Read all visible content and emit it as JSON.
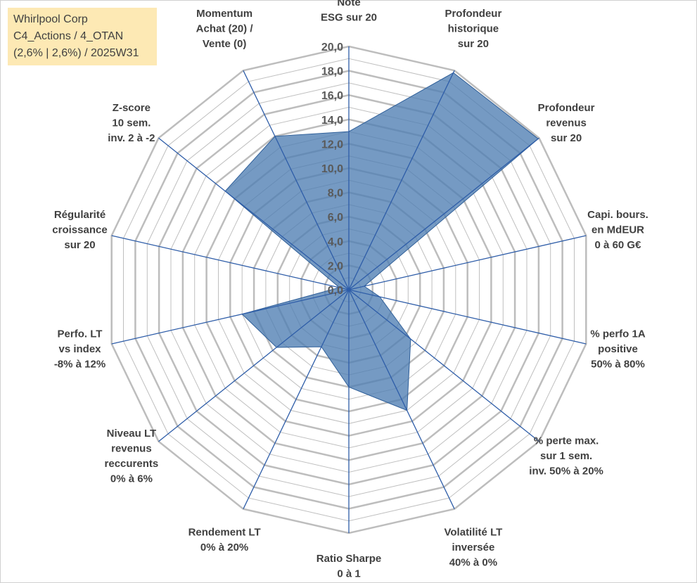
{
  "info": {
    "line1": "Whirlpool Corp",
    "line2": "C4_Actions / 4_OTAN",
    "line3": "(2,6% | 2,6%) / 2025W31"
  },
  "chart_data": {
    "type": "radar",
    "categories": [
      [
        "Note",
        "ESG sur 20"
      ],
      [
        "Profondeur",
        "historique",
        "sur 20"
      ],
      [
        "Profondeur",
        "revenus",
        "sur 20"
      ],
      [
        "Capi. bours.",
        "en MdEUR",
        "0 à 60 G€"
      ],
      [
        "% perfo 1A",
        "positive",
        "50% à 80%"
      ],
      [
        "% perte max.",
        "sur 1 sem.",
        "inv. 50% à 20%"
      ],
      [
        "Volatilité LT",
        "inversée",
        "40% à 0%"
      ],
      [
        "Ratio Sharpe",
        "0 à 1"
      ],
      [
        "Rendement LT",
        "0% à 20%"
      ],
      [
        "Niveau LT",
        "revenus",
        "reccurents",
        "0% à 6%"
      ],
      [
        "Perfo. LT",
        "vs index",
        "-8% à 12%"
      ],
      [
        "Régularité",
        "croissance",
        "sur 20"
      ],
      [
        "Z-score",
        "10 sem.",
        "inv. 2 à -2"
      ],
      [
        "Momentum",
        "Achat (20) /",
        "Vente (0)"
      ]
    ],
    "values": [
      13.0,
      19.8,
      19.9,
      1.3,
      2.6,
      6.5,
      11.0,
      8.0,
      5.2,
      7.6,
      9.0,
      0.8,
      13.0,
      14.0
    ],
    "radial_ticks": [
      "0,0",
      "2,0",
      "4,0",
      "6,0",
      "8,0",
      "10,0",
      "12,0",
      "14,0",
      "16,0",
      "18,0",
      "20,0"
    ],
    "r_range": [
      0,
      20
    ],
    "colors": {
      "area": "#4e7db2",
      "spoke": "#2e5da8",
      "grid": "#bdbdbd"
    }
  }
}
